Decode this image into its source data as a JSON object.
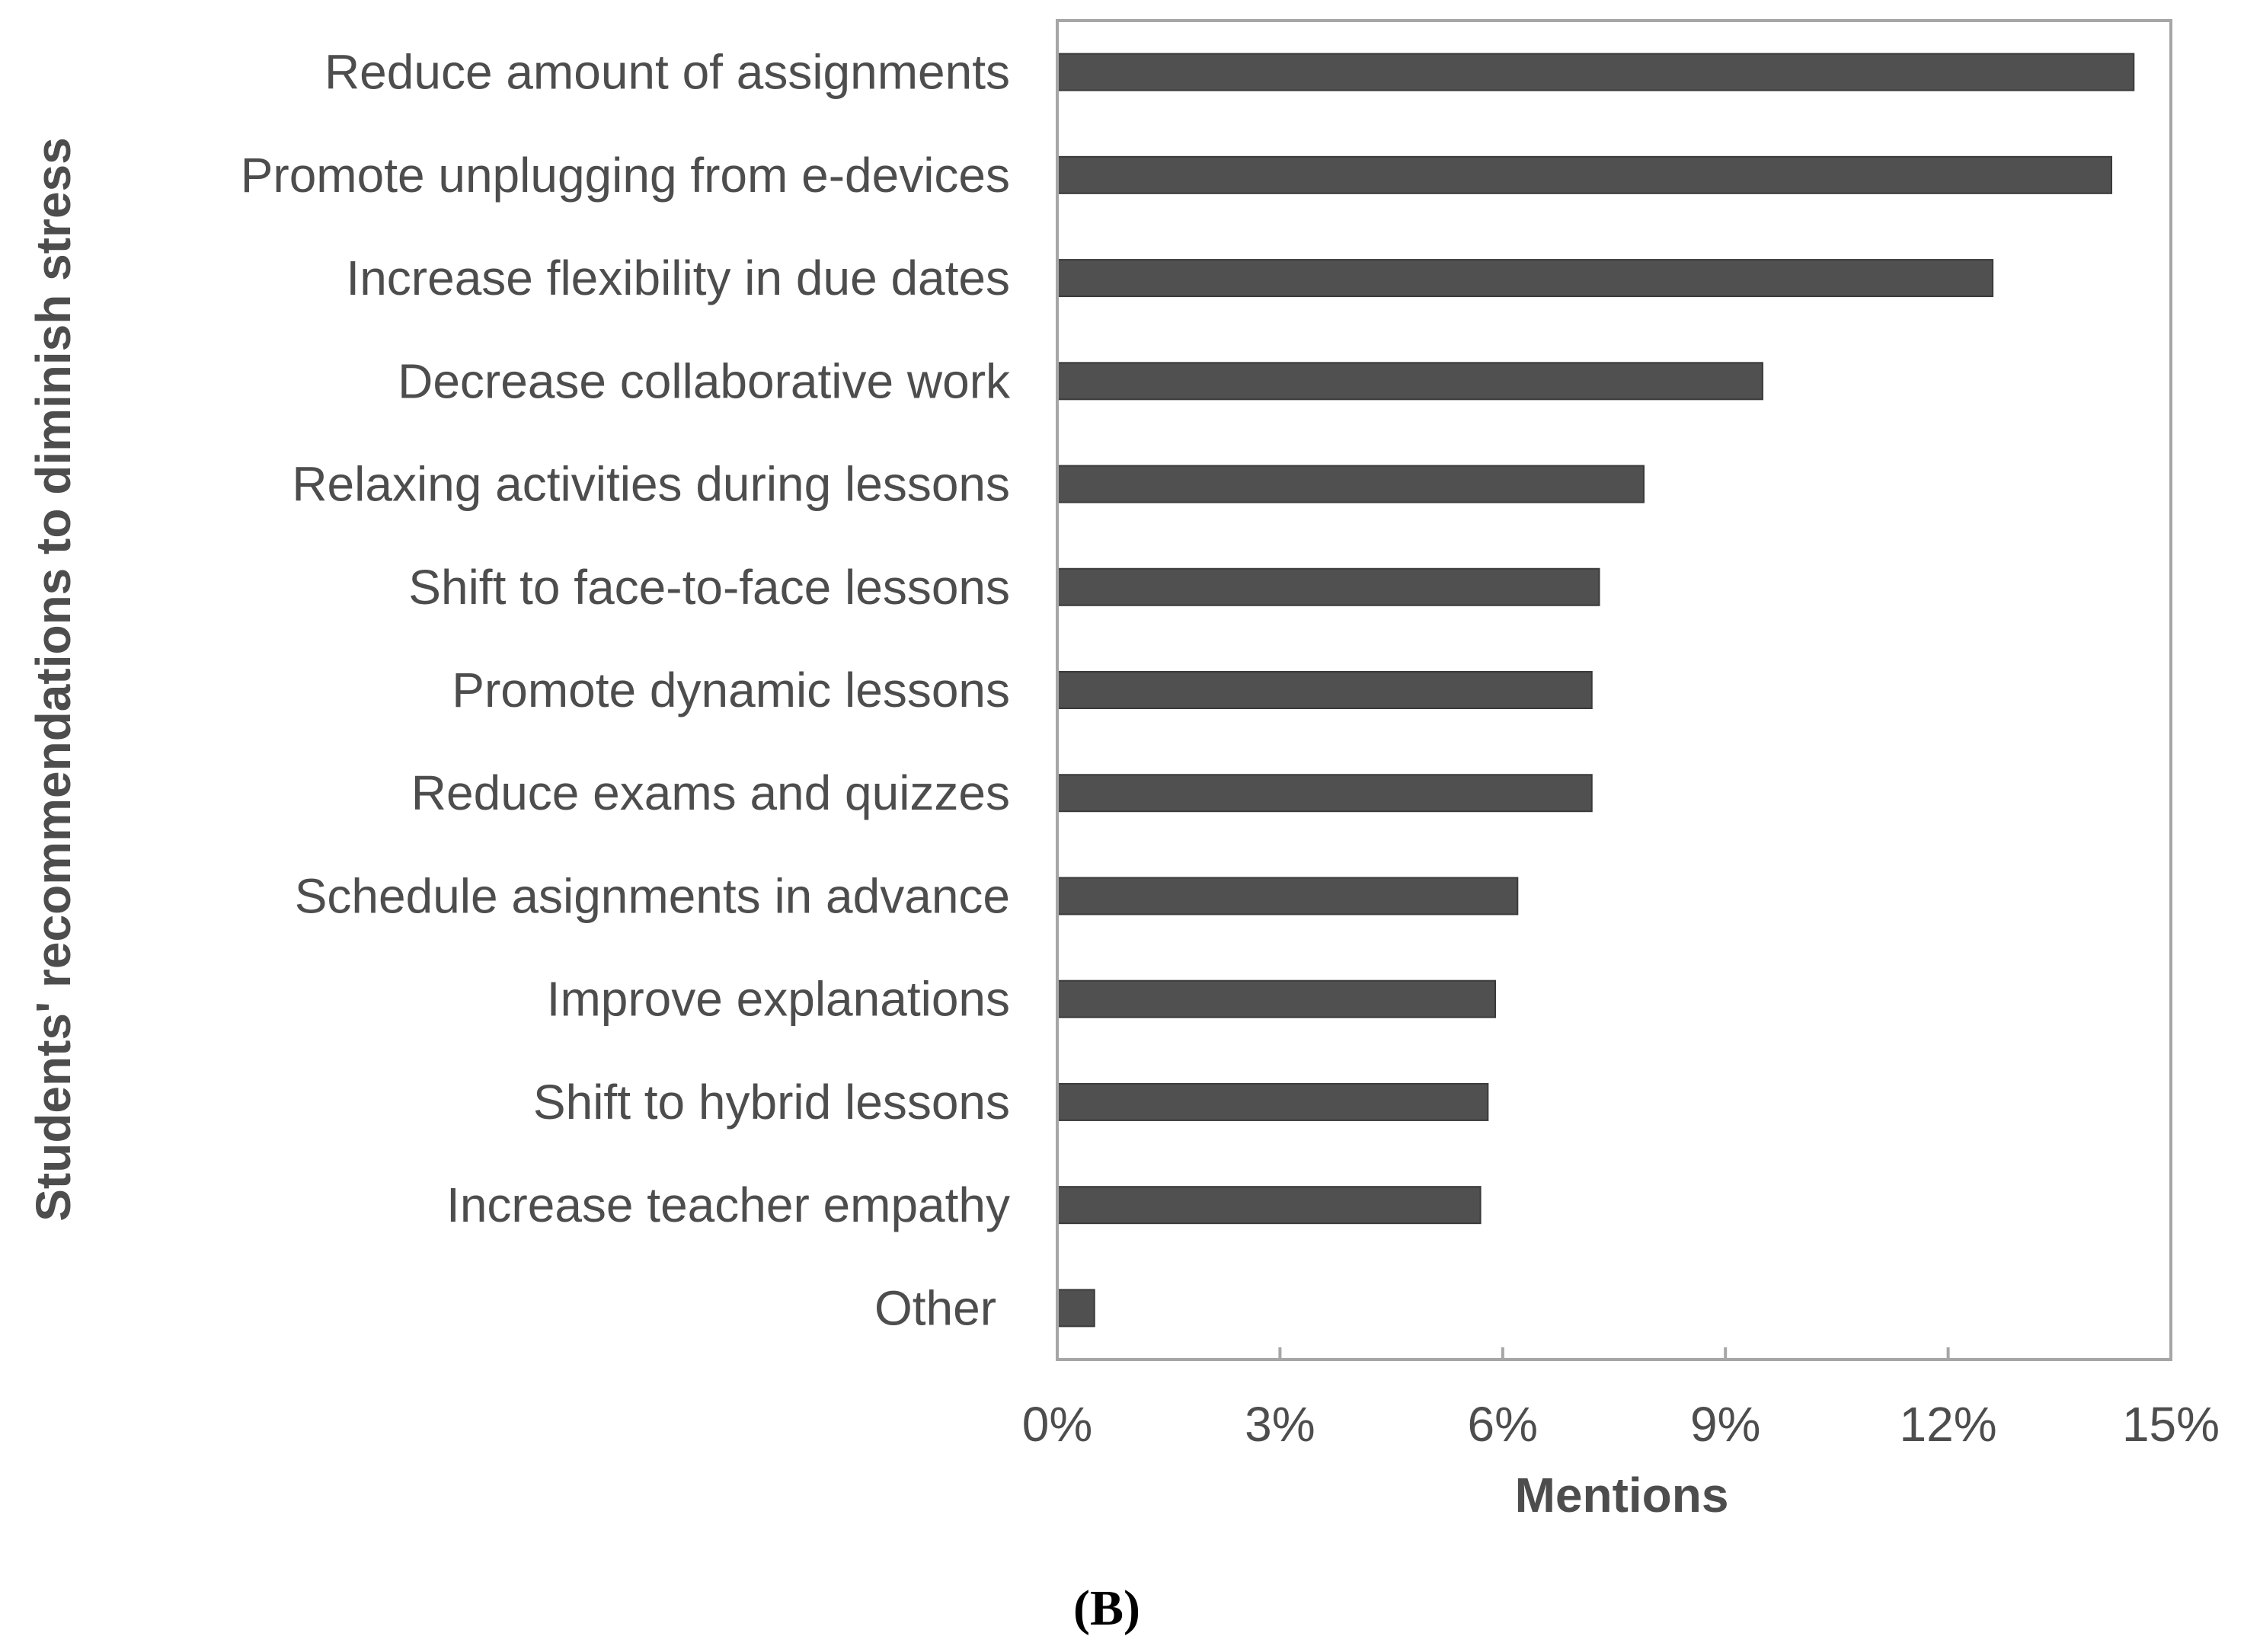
{
  "chart_data": {
    "type": "bar",
    "orientation": "horizontal",
    "categories": [
      "Reduce amount of assignments",
      "Promote unplugging from e-devices",
      "Increase flexibility in due dates",
      "Decrease collaborative work",
      "Relaxing activities during lessons",
      "Shift to face-to-face lessons",
      "Promote dynamic lessons",
      "Reduce exams and quizzes",
      "Schedule asignments in advance",
      "Improve explanations",
      "Shift to hybrid lessons",
      "Increase teacher empathy",
      "Other"
    ],
    "values": [
      14.5,
      14.2,
      12.6,
      9.5,
      7.9,
      7.3,
      7.2,
      7.2,
      6.2,
      5.9,
      5.8,
      5.7,
      0.5
    ],
    "xlabel": "Mentions",
    "ylabel": "Students' recommendations to diminish stress",
    "xlim": [
      0,
      15
    ],
    "xticks": [
      "0%",
      "3%",
      "6%",
      "9%",
      "12%",
      "15%"
    ],
    "xtick_values": [
      0,
      3,
      6,
      9,
      12,
      15
    ],
    "grid": false,
    "bar_color": "#505050",
    "axis_color": "#a6a6a6",
    "panel_label": "(B)"
  }
}
